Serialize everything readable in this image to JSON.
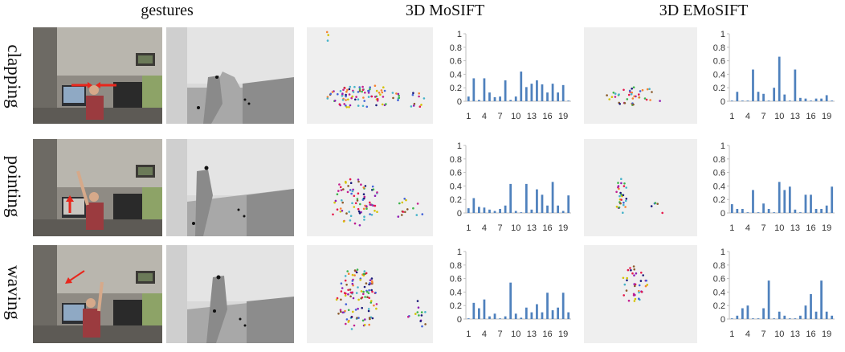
{
  "header": {
    "col_gestures": "gestures",
    "col_mosift": "3D MoSIFT",
    "col_emosift": "3D EMoSIFT"
  },
  "rows": [
    {
      "label": "clapping"
    },
    {
      "label": "pointing"
    },
    {
      "label": "waving"
    }
  ],
  "colors": {
    "bar": "#4f81bd",
    "axis": "#bfbfbf",
    "scatter_bg": "#efefef",
    "annotation_arrow": "#e8261c"
  },
  "chart_data": [
    {
      "type": "bar",
      "row": "clapping",
      "method": "3D MoSIFT",
      "categories": [
        "1",
        "2",
        "3",
        "4",
        "5",
        "6",
        "7",
        "8",
        "9",
        "10",
        "11",
        "12",
        "13",
        "14",
        "15",
        "16",
        "17",
        "18",
        "19",
        "20"
      ],
      "x_tick_labels": [
        "1",
        "4",
        "7",
        "10",
        "13",
        "16",
        "19"
      ],
      "y_tick_labels": [
        "0",
        "0.2",
        "0.4",
        "0.6",
        "0.8",
        "1"
      ],
      "ylim": [
        0,
        1
      ],
      "values": [
        0.07,
        0.34,
        0.02,
        0.34,
        0.13,
        0.06,
        0.07,
        0.31,
        0.02,
        0.07,
        0.44,
        0.21,
        0.26,
        0.31,
        0.25,
        0.13,
        0.26,
        0.13,
        0.24,
        0.01
      ]
    },
    {
      "type": "bar",
      "row": "clapping",
      "method": "3D EMoSIFT",
      "categories": [
        "1",
        "2",
        "3",
        "4",
        "5",
        "6",
        "7",
        "8",
        "9",
        "10",
        "11",
        "12",
        "13",
        "14",
        "15",
        "16",
        "17",
        "18",
        "19",
        "20"
      ],
      "x_tick_labels": [
        "1",
        "4",
        "7",
        "10",
        "13",
        "16",
        "19"
      ],
      "y_tick_labels": [
        "0",
        "0.2",
        "0.4",
        "0.6",
        "0.8",
        "1"
      ],
      "ylim": [
        0,
        1
      ],
      "values": [
        0.01,
        0.14,
        0.01,
        0.01,
        0.47,
        0.14,
        0.11,
        0.01,
        0.2,
        0.66,
        0.1,
        0.01,
        0.47,
        0.05,
        0.04,
        0.01,
        0.04,
        0.04,
        0.09,
        0.01
      ]
    },
    {
      "type": "bar",
      "row": "pointing",
      "method": "3D MoSIFT",
      "categories": [
        "1",
        "2",
        "3",
        "4",
        "5",
        "6",
        "7",
        "8",
        "9",
        "10",
        "11",
        "12",
        "13",
        "14",
        "15",
        "16",
        "17",
        "18",
        "19",
        "20"
      ],
      "x_tick_labels": [
        "1",
        "4",
        "7",
        "10",
        "13",
        "16",
        "19"
      ],
      "y_tick_labels": [
        "0",
        "0.2",
        "0.4",
        "0.6",
        "0.8",
        "1"
      ],
      "ylim": [
        0,
        1
      ],
      "values": [
        0.07,
        0.22,
        0.09,
        0.08,
        0.05,
        0.03,
        0.06,
        0.11,
        0.43,
        0.03,
        0.01,
        0.43,
        0.05,
        0.35,
        0.27,
        0.11,
        0.46,
        0.11,
        0.03,
        0.26
      ]
    },
    {
      "type": "bar",
      "row": "pointing",
      "method": "3D EMoSIFT",
      "categories": [
        "1",
        "2",
        "3",
        "4",
        "5",
        "6",
        "7",
        "8",
        "9",
        "10",
        "11",
        "12",
        "13",
        "14",
        "15",
        "16",
        "17",
        "18",
        "19",
        "20"
      ],
      "x_tick_labels": [
        "1",
        "4",
        "7",
        "10",
        "13",
        "16",
        "19"
      ],
      "y_tick_labels": [
        "0",
        "0.2",
        "0.4",
        "0.6",
        "0.8",
        "1"
      ],
      "ylim": [
        0,
        1
      ],
      "values": [
        0.13,
        0.06,
        0.06,
        0.01,
        0.34,
        0.01,
        0.14,
        0.06,
        0.01,
        0.46,
        0.34,
        0.39,
        0.05,
        0.01,
        0.27,
        0.27,
        0.06,
        0.06,
        0.11,
        0.39
      ]
    },
    {
      "type": "bar",
      "row": "waving",
      "method": "3D MoSIFT",
      "categories": [
        "1",
        "2",
        "3",
        "4",
        "5",
        "6",
        "7",
        "8",
        "9",
        "10",
        "11",
        "12",
        "13",
        "14",
        "15",
        "16",
        "17",
        "18",
        "19",
        "20"
      ],
      "x_tick_labels": [
        "1",
        "4",
        "7",
        "10",
        "13",
        "16",
        "19"
      ],
      "y_tick_labels": [
        "0",
        "0.2",
        "0.4",
        "0.6",
        "0.8",
        "1"
      ],
      "ylim": [
        0,
        1
      ],
      "values": [
        0.01,
        0.24,
        0.16,
        0.29,
        0.04,
        0.08,
        0.01,
        0.04,
        0.54,
        0.08,
        0.02,
        0.17,
        0.1,
        0.22,
        0.1,
        0.39,
        0.13,
        0.17,
        0.39,
        0.1
      ]
    },
    {
      "type": "bar",
      "row": "waving",
      "method": "3D EMoSIFT",
      "categories": [
        "1",
        "2",
        "3",
        "4",
        "5",
        "6",
        "7",
        "8",
        "9",
        "10",
        "11",
        "12",
        "13",
        "14",
        "15",
        "16",
        "17",
        "18",
        "19",
        "20"
      ],
      "x_tick_labels": [
        "1",
        "4",
        "7",
        "10",
        "13",
        "16",
        "19"
      ],
      "y_tick_labels": [
        "0",
        "0.2",
        "0.4",
        "0.6",
        "0.8",
        "1"
      ],
      "ylim": [
        0,
        1
      ],
      "values": [
        0.01,
        0.05,
        0.16,
        0.2,
        0.01,
        0.01,
        0.16,
        0.57,
        0.01,
        0.11,
        0.05,
        0.01,
        0.01,
        0.05,
        0.2,
        0.37,
        0.11,
        0.57,
        0.11,
        0.05
      ]
    }
  ]
}
